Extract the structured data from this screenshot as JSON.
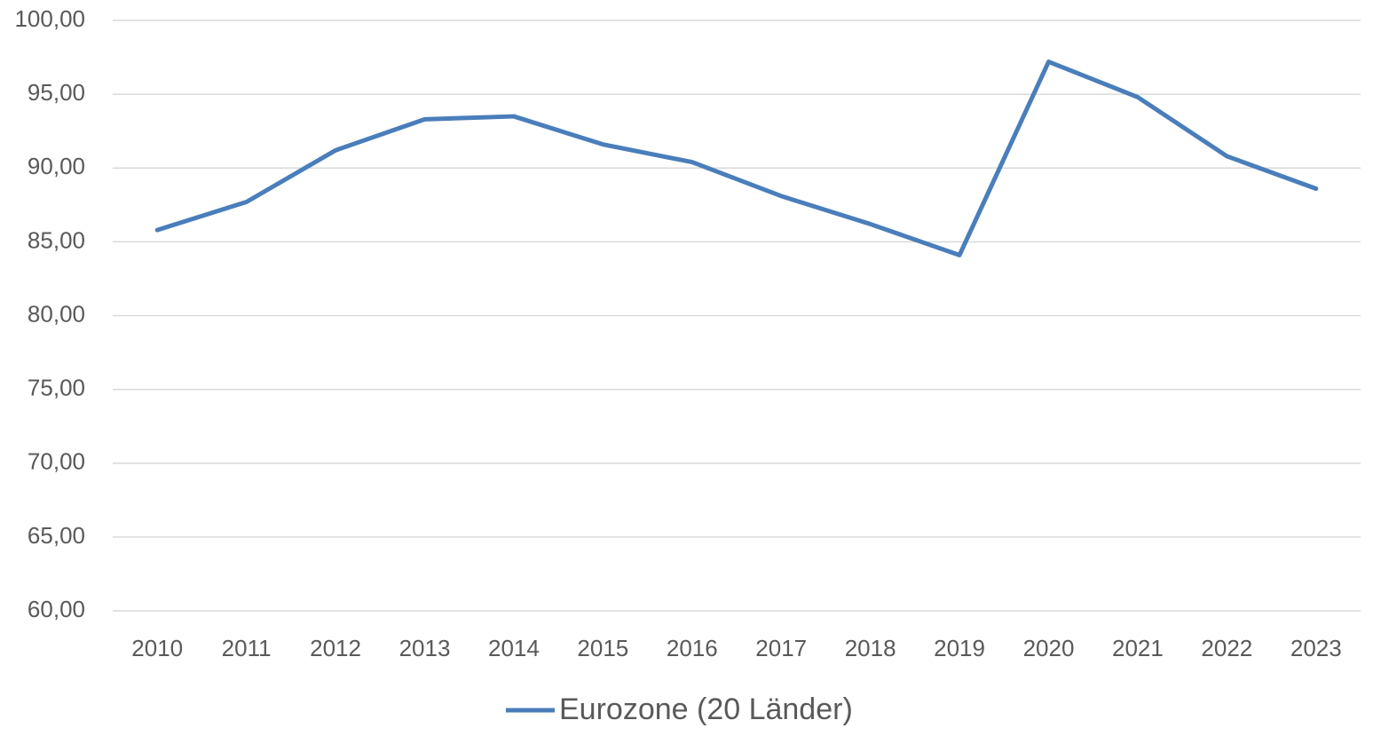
{
  "chart_data": {
    "type": "line",
    "categories": [
      "2010",
      "2011",
      "2012",
      "2013",
      "2014",
      "2015",
      "2016",
      "2017",
      "2018",
      "2019",
      "2020",
      "2021",
      "2022",
      "2023"
    ],
    "series": [
      {
        "name": "Eurozone (20 Länder)",
        "color": "#4a7ebb",
        "values": [
          85.8,
          87.7,
          91.2,
          93.3,
          93.5,
          91.6,
          90.4,
          88.1,
          86.2,
          84.1,
          97.2,
          94.8,
          90.8,
          88.6
        ]
      }
    ],
    "ylim": [
      60,
      100
    ],
    "yticks": [
      {
        "value": 60,
        "label": "60,00"
      },
      {
        "value": 65,
        "label": "65,00"
      },
      {
        "value": 70,
        "label": "70,00"
      },
      {
        "value": 75,
        "label": "75,00"
      },
      {
        "value": 80,
        "label": "80,00"
      },
      {
        "value": 85,
        "label": "85,00"
      },
      {
        "value": 90,
        "label": "90,00"
      },
      {
        "value": 95,
        "label": "95,00"
      },
      {
        "value": 100,
        "label": "100,00"
      }
    ],
    "grid": true,
    "legend": "bottom"
  }
}
